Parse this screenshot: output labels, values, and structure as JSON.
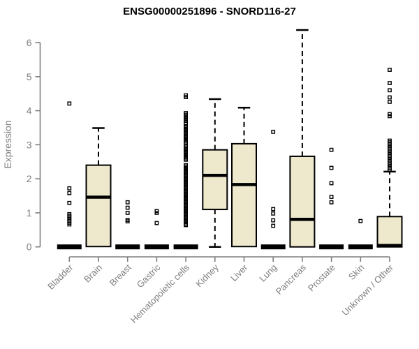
{
  "chart_data": {
    "type": "boxplot",
    "title": "ENSG00000251896 - SNORD116-27",
    "xlabel": "",
    "ylabel": "Expression",
    "ylim": [
      0,
      6.4
    ],
    "yticks": [
      0,
      1,
      2,
      3,
      4,
      5,
      6
    ],
    "grid": false,
    "legend": "none",
    "categories": [
      "Bladder",
      "Brain",
      "Breast",
      "Gastric",
      "Hematopoietic cells",
      "Kidney",
      "Liver",
      "Lung",
      "Pancreas",
      "Prostate",
      "Skin",
      "Unknown / Other"
    ],
    "colors": {
      "background": "#ffffff",
      "box_fill": "#eee8cd",
      "box_stroke": "#000000",
      "median": "#000000",
      "whisker": "#000000",
      "outlier": "#000000",
      "axis": "#7f7f7f",
      "label": "#7f7f7f",
      "title": "#000000"
    },
    "series": [
      {
        "label": "Bladder",
        "q1": 0,
        "median": 0,
        "q3": 0,
        "whisker_low": 0,
        "whisker_high": 0,
        "outliers": [
          4.21,
          1.72,
          1.58,
          1.29,
          0.96,
          0.91,
          0.86,
          0.81,
          0.76,
          0.71,
          0.66
        ]
      },
      {
        "label": "Brain",
        "q1": 0.01,
        "median": 1.46,
        "q3": 2.4,
        "whisker_low": 0.01,
        "whisker_high": 3.49,
        "outliers": []
      },
      {
        "label": "Breast",
        "q1": 0,
        "median": 0,
        "q3": 0,
        "whisker_low": 0,
        "whisker_high": 0,
        "outliers": [
          1.31,
          1.15,
          1.0,
          0.79,
          0.75
        ]
      },
      {
        "label": "Gastric",
        "q1": 0,
        "median": 0,
        "q3": 0,
        "whisker_low": 0,
        "whisker_high": 0,
        "outliers": [
          1.05,
          1.0,
          0.7
        ]
      },
      {
        "label": "Hematopoietic cells",
        "q1": 0,
        "median": 0,
        "q3": 0,
        "whisker_low": 0,
        "whisker_high": 0,
        "outliers": [
          4.45,
          4.4,
          3.93,
          3.88,
          3.82,
          3.76,
          3.7,
          3.63,
          3.55,
          3.51,
          3.47,
          3.43,
          3.39,
          3.35,
          3.31,
          3.27,
          3.23,
          3.19,
          3.15,
          3.11,
          3.07,
          2.96,
          2.92,
          2.88,
          2.84,
          2.8,
          2.76,
          2.72,
          2.68,
          2.64,
          2.6,
          2.56,
          2.4,
          2.36,
          2.32,
          2.28,
          2.24,
          2.2,
          2.16,
          2.12,
          2.08,
          2.04,
          2.0,
          1.96,
          1.92,
          1.88,
          1.84,
          1.8,
          1.76,
          1.72,
          1.68,
          1.64,
          1.6,
          1.56,
          1.52,
          1.48,
          1.44,
          1.4,
          1.36,
          1.32,
          1.28,
          1.24,
          1.2,
          1.16,
          1.12,
          1.08,
          1.04,
          1.0,
          0.96,
          0.92,
          0.88,
          0.84,
          0.8,
          0.76,
          0.72,
          0.68,
          0.64
        ]
      },
      {
        "label": "Kidney",
        "q1": 1.1,
        "median": 2.1,
        "q3": 2.85,
        "whisker_low": 0.0,
        "whisker_high": 4.34,
        "outliers": []
      },
      {
        "label": "Liver",
        "q1": 0.01,
        "median": 1.83,
        "q3": 3.03,
        "whisker_low": 0.01,
        "whisker_high": 4.09,
        "outliers": []
      },
      {
        "label": "Lung",
        "q1": 0,
        "median": 0,
        "q3": 0,
        "whisker_low": 0,
        "whisker_high": 0,
        "outliers": [
          3.38,
          1.11,
          0.98,
          0.78,
          0.62
        ]
      },
      {
        "label": "Pancreas",
        "q1": 0.0,
        "median": 0.81,
        "q3": 2.66,
        "whisker_low": 0.0,
        "whisker_high": 6.37,
        "outliers": []
      },
      {
        "label": "Prostate",
        "q1": 0,
        "median": 0,
        "q3": 0,
        "whisker_low": 0,
        "whisker_high": 0,
        "outliers": [
          2.85,
          2.32,
          1.87,
          1.47,
          1.31
        ]
      },
      {
        "label": "Skin",
        "q1": 0,
        "median": 0,
        "q3": 0,
        "whisker_low": 0,
        "whisker_high": 0,
        "outliers": [
          0.76
        ]
      },
      {
        "label": "Unknown / Other",
        "q1": 0.0,
        "median": 0.04,
        "q3": 0.89,
        "whisker_low": 0.0,
        "whisker_high": 2.21,
        "outliers": [
          5.2,
          4.81,
          4.6,
          4.39,
          4.26,
          3.9,
          3.84,
          3.12,
          3.07,
          3.02,
          2.97,
          2.92,
          2.87,
          2.82,
          2.77,
          2.72,
          2.67,
          2.62,
          2.57,
          2.52,
          2.47,
          2.42,
          2.37,
          2.32,
          2.27
        ]
      }
    ]
  }
}
